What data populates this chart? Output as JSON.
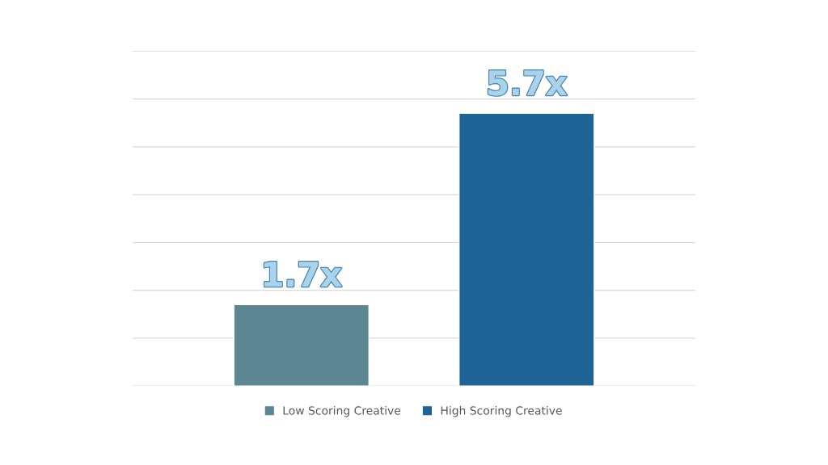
{
  "chart_data": {
    "type": "bar",
    "categories": [
      null
    ],
    "series": [
      {
        "name": "Low Scoring Creative",
        "color": "#5b8692",
        "values": [
          1.7
        ],
        "value_labels": [
          "1.7x"
        ]
      },
      {
        "name": "High Scoring Creative",
        "color": "#1f6496",
        "values": [
          5.7
        ],
        "value_labels": [
          "5.7x"
        ]
      }
    ],
    "ylim": [
      0,
      7
    ],
    "yticks": [
      {
        "value": 0,
        "label": null
      },
      {
        "value": 1,
        "label": null
      },
      {
        "value": 2,
        "label": null
      },
      {
        "value": 3,
        "label": null
      },
      {
        "value": 4,
        "label": null
      },
      {
        "value": 5,
        "label": null
      },
      {
        "value": 6,
        "label": null
      },
      {
        "value": 7,
        "label": null
      }
    ],
    "grid": "y",
    "legend": "bottom"
  }
}
